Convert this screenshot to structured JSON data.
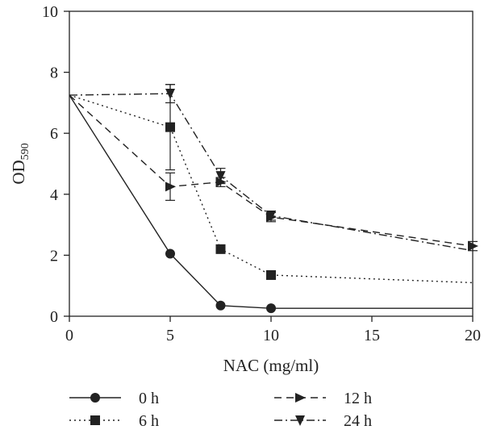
{
  "chart_data": {
    "type": "line",
    "title": "",
    "xlabel": "NAC (mg/ml)",
    "ylabel": "OD",
    "ylabel_subscript": "590",
    "xlim": [
      0,
      20
    ],
    "ylim": [
      0,
      10
    ],
    "xticks": [
      0,
      5,
      10,
      15,
      20
    ],
    "yticks": [
      0,
      2,
      4,
      6,
      8,
      10
    ],
    "grid": false,
    "legend_position": "bottom",
    "series": [
      {
        "name": "0 h",
        "line_style": "solid",
        "marker": "circle",
        "x": [
          0,
          5,
          7.5,
          10,
          20
        ],
        "y": [
          7.25,
          2.05,
          0.35,
          0.26,
          0.26
        ],
        "err": [
          0,
          0,
          0,
          0,
          0
        ],
        "markers_at": [
          5,
          7.5,
          10
        ]
      },
      {
        "name": "6 h",
        "line_style": "dotted",
        "marker": "square",
        "x": [
          0,
          5,
          7.5,
          10,
          20
        ],
        "y": [
          7.25,
          6.2,
          2.2,
          1.35,
          1.1
        ],
        "err": [
          0,
          1.4,
          0,
          0,
          0
        ],
        "markers_at": [
          5,
          7.5,
          10
        ]
      },
      {
        "name": "12 h",
        "line_style": "dashed",
        "marker": "triangle-right",
        "x": [
          0,
          5,
          7.5,
          10,
          20
        ],
        "y": [
          7.25,
          4.25,
          4.4,
          3.25,
          2.3
        ],
        "err": [
          0,
          0.45,
          0.15,
          0.15,
          0.15
        ],
        "markers_at": [
          5,
          7.5,
          10,
          20
        ]
      },
      {
        "name": "24 h",
        "line_style": "dashdot",
        "marker": "triangle-down",
        "x": [
          0,
          5,
          7.5,
          10,
          20
        ],
        "y": [
          7.25,
          7.3,
          4.6,
          3.3,
          2.15
        ],
        "err": [
          0,
          0.3,
          0.25,
          0.15,
          0
        ],
        "markers_at": [
          5,
          7.5,
          10
        ]
      }
    ]
  },
  "colors": {
    "ink": "#222222"
  }
}
